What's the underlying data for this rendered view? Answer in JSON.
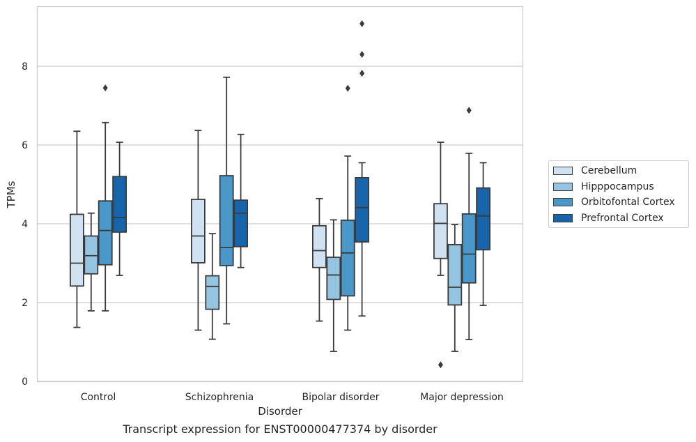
{
  "chart_data": {
    "type": "box",
    "caption": "Transcript expression for ENST00000477374 by disorder",
    "xlabel": "Disorder",
    "ylabel": "TPMs",
    "ylim": [
      0,
      9.5
    ],
    "yticks": [
      0,
      2,
      4,
      6,
      8
    ],
    "grid": "horizontal",
    "legend_position": "right",
    "categories": [
      "Control",
      "Schizophrenia",
      "Bipolar disorder",
      "Major depression"
    ],
    "series": [
      {
        "name": "Cerebellum",
        "color": "#d0e1f2",
        "boxes": [
          {
            "whisker_low": 1.37,
            "q1": 2.42,
            "median": 3.0,
            "q3": 4.24,
            "whisker_high": 6.35,
            "outliers": []
          },
          {
            "whisker_low": 1.3,
            "q1": 3.01,
            "median": 3.69,
            "q3": 4.62,
            "whisker_high": 6.37,
            "outliers": []
          },
          {
            "whisker_low": 1.53,
            "q1": 2.89,
            "median": 3.32,
            "q3": 3.95,
            "whisker_high": 4.64,
            "outliers": []
          },
          {
            "whisker_low": 2.69,
            "q1": 3.12,
            "median": 4.01,
            "q3": 4.51,
            "whisker_high": 6.07,
            "outliers": [
              0.42
            ]
          }
        ]
      },
      {
        "name": "Hipppocampus",
        "color": "#94c4df",
        "boxes": [
          {
            "whisker_low": 1.79,
            "q1": 2.73,
            "median": 3.19,
            "q3": 3.69,
            "whisker_high": 4.27,
            "outliers": []
          },
          {
            "whisker_low": 1.07,
            "q1": 1.83,
            "median": 2.41,
            "q3": 2.68,
            "whisker_high": 3.75,
            "outliers": []
          },
          {
            "whisker_low": 0.76,
            "q1": 2.08,
            "median": 2.7,
            "q3": 3.15,
            "whisker_high": 4.1,
            "outliers": []
          },
          {
            "whisker_low": 0.76,
            "q1": 1.94,
            "median": 2.39,
            "q3": 3.47,
            "whisker_high": 3.98,
            "outliers": []
          }
        ]
      },
      {
        "name": "Orbitofontal Cortex",
        "color": "#4a98c9",
        "boxes": [
          {
            "whisker_low": 1.79,
            "q1": 2.96,
            "median": 3.83,
            "q3": 4.58,
            "whisker_high": 6.57,
            "outliers": [
              7.45
            ]
          },
          {
            "whisker_low": 1.46,
            "q1": 2.94,
            "median": 3.4,
            "q3": 5.22,
            "whisker_high": 7.72,
            "outliers": []
          },
          {
            "whisker_low": 1.3,
            "q1": 2.17,
            "median": 3.26,
            "q3": 4.09,
            "whisker_high": 5.72,
            "outliers": [
              7.44
            ]
          },
          {
            "whisker_low": 1.06,
            "q1": 2.5,
            "median": 3.23,
            "q3": 4.25,
            "whisker_high": 5.79,
            "outliers": [
              6.88
            ]
          }
        ]
      },
      {
        "name": "Prefrontal Cortex",
        "color": "#1764ab",
        "boxes": [
          {
            "whisker_low": 2.69,
            "q1": 3.79,
            "median": 4.16,
            "q3": 5.2,
            "whisker_high": 6.07,
            "outliers": []
          },
          {
            "whisker_low": 2.89,
            "q1": 3.42,
            "median": 4.27,
            "q3": 4.6,
            "whisker_high": 6.27,
            "outliers": []
          },
          {
            "whisker_low": 1.66,
            "q1": 3.54,
            "median": 4.41,
            "q3": 5.17,
            "whisker_high": 5.55,
            "outliers": [
              7.82,
              8.3,
              9.08
            ]
          },
          {
            "whisker_low": 1.93,
            "q1": 3.34,
            "median": 4.2,
            "q3": 4.91,
            "whisker_high": 5.55,
            "outliers": []
          }
        ]
      }
    ]
  }
}
